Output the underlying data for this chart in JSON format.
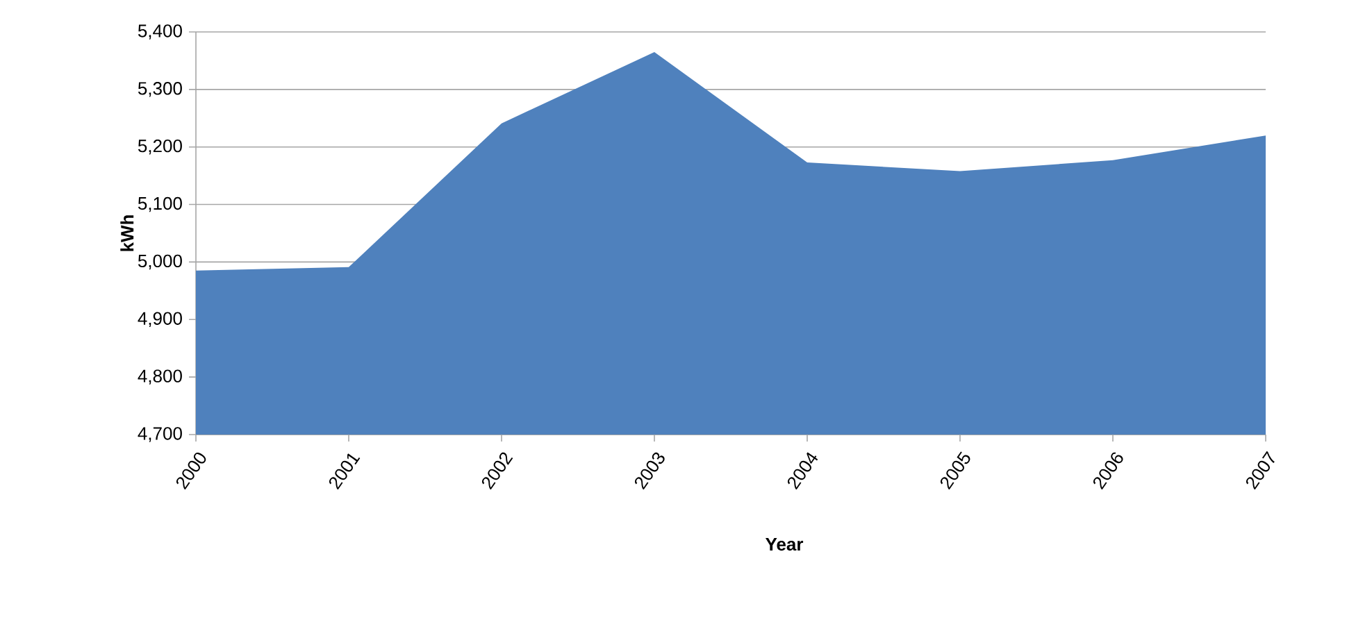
{
  "chart_data": {
    "type": "area",
    "xlabel": "Year",
    "ylabel": "kWh",
    "categories": [
      "2000",
      "2001",
      "2002",
      "2003",
      "2004",
      "2005",
      "2006",
      "2007"
    ],
    "values": [
      4985,
      4991,
      5241,
      5365,
      5173,
      5158,
      5177,
      5220
    ],
    "color": "#4f81bd",
    "ylim": [
      4700,
      5400
    ],
    "yticks": [
      {
        "value": 4700,
        "label": "4,700"
      },
      {
        "value": 4800,
        "label": "4,800"
      },
      {
        "value": 4900,
        "label": "4,900"
      },
      {
        "value": 5000,
        "label": "5,000"
      },
      {
        "value": 5100,
        "label": "5,100"
      },
      {
        "value": 5200,
        "label": "5,200"
      },
      {
        "value": 5300,
        "label": "5,300"
      },
      {
        "value": 5400,
        "label": "5,400"
      }
    ],
    "grid": "y"
  }
}
